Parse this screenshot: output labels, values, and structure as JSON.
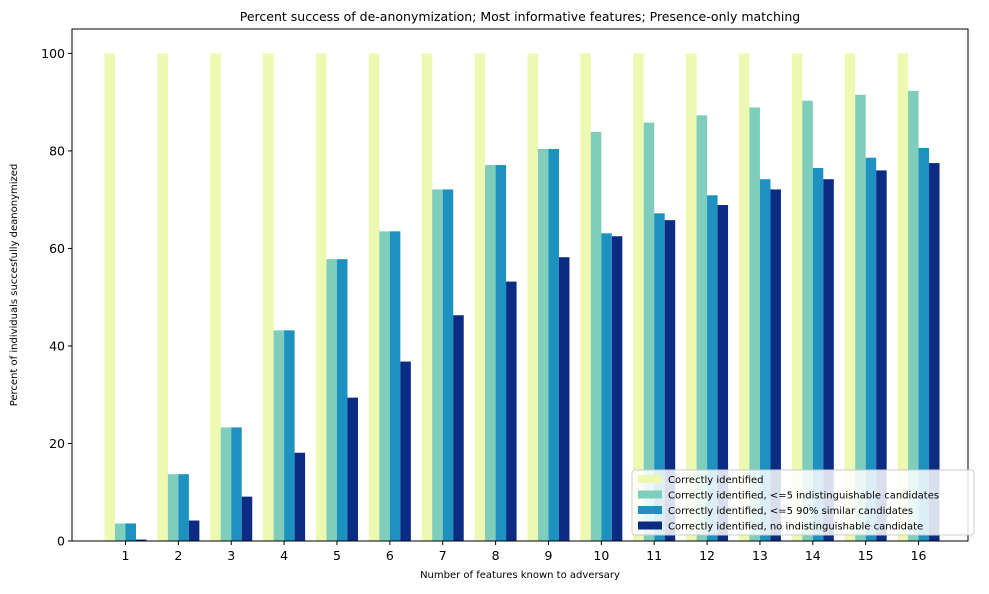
{
  "chart_data": {
    "type": "bar",
    "title": "Percent success of de-anonymization; Most informative features; Presence-only matching",
    "xlabel": "Number of features known to adversary",
    "ylabel": "Percent of individuals succesfully deanonymized",
    "categories": [
      "1",
      "2",
      "3",
      "4",
      "5",
      "6",
      "7",
      "8",
      "9",
      "10",
      "11",
      "12",
      "13",
      "14",
      "15",
      "16"
    ],
    "ylim": [
      0,
      105
    ],
    "yticks": [
      0,
      20,
      40,
      60,
      80,
      100
    ],
    "grid": false,
    "legend_position": "lower-right",
    "series": [
      {
        "name": "Correctly identified",
        "color": "#edf8b1",
        "values": [
          100,
          100,
          100,
          100,
          100,
          100,
          100,
          100,
          100,
          100,
          100,
          100,
          100,
          100,
          100,
          100
        ]
      },
      {
        "name": "Correctly identified, <=5 indistinguishable candidates",
        "color": "#7fcdbb",
        "values": [
          3.6,
          13.7,
          23.3,
          43.2,
          57.8,
          63.5,
          72.1,
          77.1,
          80.4,
          83.9,
          85.8,
          87.3,
          88.9,
          90.3,
          91.5,
          92.3
        ]
      },
      {
        "name": "Correctly identified, <=5 90% similar candidates",
        "color": "#1d91c0",
        "values": [
          3.6,
          13.7,
          23.3,
          43.2,
          57.8,
          63.5,
          72.1,
          77.1,
          80.4,
          63.1,
          67.2,
          70.9,
          74.2,
          76.5,
          78.6,
          80.6
        ]
      },
      {
        "name": "Correctly identified, no indistinguishable candidate",
        "color": "#0c2c84",
        "values": [
          0.3,
          4.2,
          9.1,
          18.1,
          29.4,
          36.8,
          46.3,
          53.2,
          58.2,
          62.5,
          65.8,
          68.9,
          72.1,
          74.2,
          76.0,
          77.5
        ]
      }
    ]
  }
}
